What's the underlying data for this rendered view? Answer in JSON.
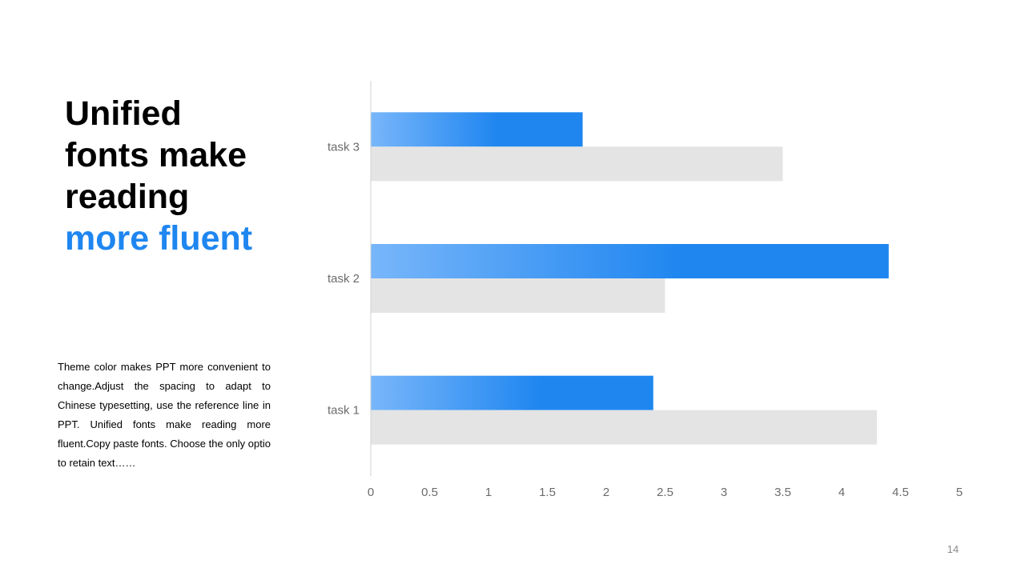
{
  "slide": {
    "title_lines": [
      "Unified",
      "fonts make",
      "reading"
    ],
    "title_accent": "more fluent",
    "body_text": "Theme  color makes PPT more convenient to change.Adjust the spacing to adapt to Chinese typesetting, use the reference line in PPT. Unified fonts make reading more fluent.Copy paste fonts. Choose the only optio to retain text……",
    "page_number": "14",
    "accent_color": "#1f86f0"
  },
  "chart_data": {
    "type": "bar",
    "orientation": "horizontal",
    "categories": [
      "task 1",
      "task 2",
      "task 3"
    ],
    "series": [
      {
        "values": [
          2.4,
          4.4,
          1.8
        ],
        "color": "#1f86f0",
        "gradient_from": "#78b6fa"
      },
      {
        "values": [
          4.3,
          2.5,
          3.5
        ],
        "color": "#e4e4e4"
      }
    ],
    "xlim": [
      0,
      5
    ],
    "xticks": [
      "0",
      "0.5",
      "1",
      "1.5",
      "2",
      "2.5",
      "3",
      "3.5",
      "4",
      "4.5",
      "5"
    ],
    "grid": false,
    "legend": "none",
    "title": "",
    "xlabel": "",
    "ylabel": ""
  }
}
